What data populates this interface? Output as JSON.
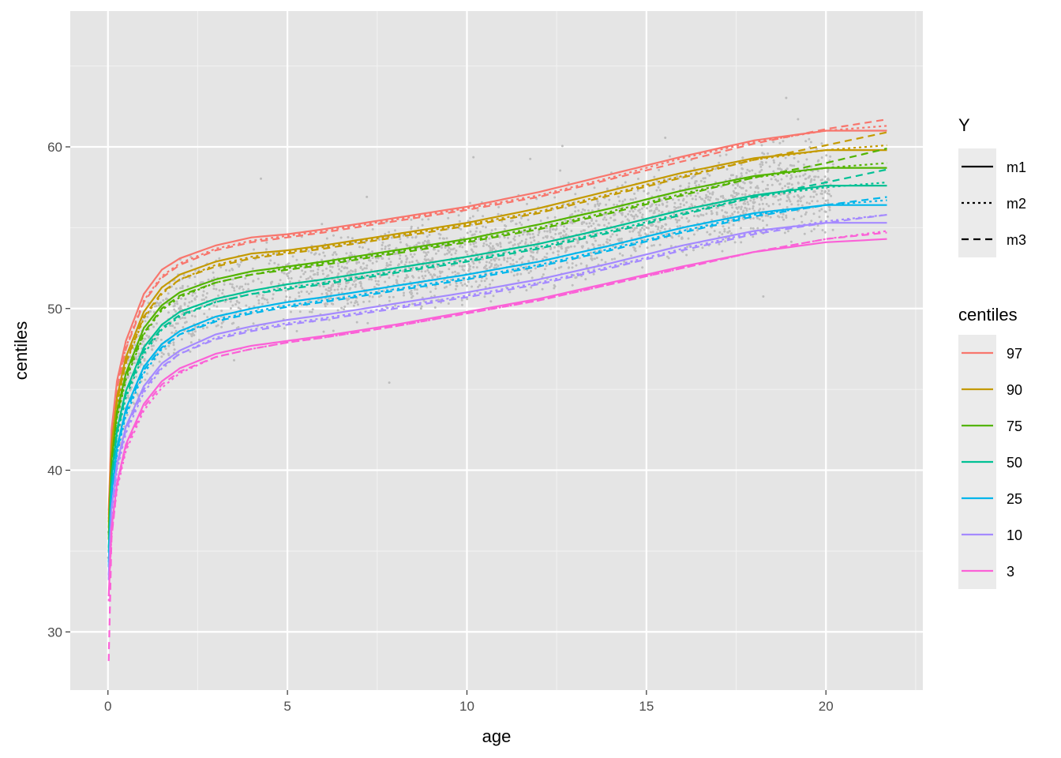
{
  "chart_data": {
    "type": "line",
    "title": "",
    "xlabel": "age",
    "ylabel": "centiles",
    "xlim": [
      -1.05,
      22.7
    ],
    "ylim": [
      26.4,
      68.4
    ],
    "x_ticks": [
      0,
      5,
      10,
      15,
      20
    ],
    "y_ticks": [
      30,
      40,
      50,
      60
    ],
    "grid": true,
    "background": "#e5e5e5",
    "legend_placement": "right",
    "legend_linetype": {
      "title": "Y",
      "entries": [
        {
          "label": "m1",
          "dash": "solid"
        },
        {
          "label": "m2",
          "dash": "dotted"
        },
        {
          "label": "m3",
          "dash": "dashed"
        }
      ]
    },
    "legend_color": {
      "title": "centiles",
      "entries": [
        {
          "label": "97",
          "color": "#F8766D"
        },
        {
          "label": "90",
          "color": "#C49A00"
        },
        {
          "label": "75",
          "color": "#53B400"
        },
        {
          "label": "50",
          "color": "#00C094"
        },
        {
          "label": "25",
          "color": "#00B6EB"
        },
        {
          "label": "10",
          "color": "#A58AFF"
        },
        {
          "label": "3",
          "color": "#FB61D7"
        }
      ]
    },
    "x": [
      0.02,
      0.1,
      0.25,
      0.5,
      1,
      1.5,
      2,
      3,
      4,
      5,
      6,
      8,
      10,
      12,
      14,
      16,
      18,
      20,
      21.7
    ],
    "series": [
      {
        "centile": "97",
        "model": "m1",
        "color": "#F8766D",
        "dash": "solid",
        "values": [
          37.5,
          42.5,
          45.5,
          48.0,
          50.9,
          52.4,
          53.1,
          53.9,
          54.4,
          54.6,
          54.9,
          55.6,
          56.3,
          57.2,
          58.3,
          59.4,
          60.4,
          61.0,
          61.0
        ]
      },
      {
        "centile": "97",
        "model": "m2",
        "color": "#F8766D",
        "dash": "dotted",
        "values": [
          37.0,
          42.0,
          45.2,
          47.6,
          50.5,
          52.0,
          52.8,
          53.7,
          54.2,
          54.5,
          54.8,
          55.5,
          56.2,
          57.0,
          58.1,
          59.3,
          60.3,
          61.0,
          61.3
        ]
      },
      {
        "centile": "97",
        "model": "m3",
        "color": "#F8766D",
        "dash": "dashed",
        "values": [
          37.2,
          42.2,
          45.0,
          47.5,
          50.4,
          51.9,
          52.7,
          53.6,
          54.1,
          54.4,
          54.7,
          55.4,
          56.1,
          56.9,
          58.0,
          59.1,
          60.2,
          61.1,
          61.7
        ]
      },
      {
        "centile": "90",
        "model": "m1",
        "color": "#C49A00",
        "dash": "solid",
        "values": [
          36.8,
          41.5,
          44.5,
          47.0,
          49.8,
          51.3,
          52.1,
          52.9,
          53.4,
          53.6,
          53.9,
          54.6,
          55.3,
          56.2,
          57.3,
          58.4,
          59.3,
          59.8,
          59.8
        ]
      },
      {
        "centile": "90",
        "model": "m2",
        "color": "#C49A00",
        "dash": "dotted",
        "values": [
          36.4,
          41.0,
          44.0,
          46.6,
          49.4,
          50.9,
          51.8,
          52.7,
          53.2,
          53.5,
          53.8,
          54.5,
          55.2,
          56.0,
          57.1,
          58.2,
          59.2,
          59.8,
          60.1
        ]
      },
      {
        "centile": "90",
        "model": "m3",
        "color": "#C49A00",
        "dash": "dashed",
        "values": [
          36.5,
          41.2,
          44.2,
          46.7,
          49.5,
          51.0,
          51.8,
          52.6,
          53.1,
          53.4,
          53.7,
          54.4,
          55.1,
          55.9,
          57.0,
          58.1,
          59.2,
          60.1,
          60.9
        ]
      },
      {
        "centile": "75",
        "model": "m1",
        "color": "#53B400",
        "dash": "solid",
        "values": [
          36.0,
          40.6,
          43.6,
          46.0,
          48.8,
          50.2,
          51.0,
          51.8,
          52.3,
          52.6,
          52.9,
          53.6,
          54.3,
          55.2,
          56.2,
          57.3,
          58.2,
          58.7,
          58.7
        ]
      },
      {
        "centile": "75",
        "model": "m2",
        "color": "#53B400",
        "dash": "dotted",
        "values": [
          35.7,
          40.2,
          43.2,
          45.6,
          48.4,
          49.9,
          50.7,
          51.6,
          52.1,
          52.5,
          52.8,
          53.5,
          54.2,
          55.0,
          56.0,
          57.1,
          58.1,
          58.7,
          59.0
        ]
      },
      {
        "centile": "75",
        "model": "m3",
        "color": "#53B400",
        "dash": "dashed",
        "values": [
          35.8,
          40.4,
          43.4,
          45.8,
          48.5,
          50.0,
          50.8,
          51.6,
          52.1,
          52.4,
          52.7,
          53.4,
          54.1,
          54.9,
          55.9,
          57.0,
          58.1,
          59.0,
          59.9
        ]
      },
      {
        "centile": "50",
        "model": "m1",
        "color": "#00C094",
        "dash": "solid",
        "values": [
          35.2,
          39.6,
          42.5,
          44.9,
          47.6,
          49.0,
          49.8,
          50.6,
          51.1,
          51.5,
          51.8,
          52.5,
          53.2,
          54.0,
          55.0,
          56.1,
          57.0,
          57.6,
          57.6
        ]
      },
      {
        "centile": "50",
        "model": "m2",
        "color": "#00C094",
        "dash": "dotted",
        "values": [
          34.9,
          39.2,
          42.1,
          44.5,
          47.2,
          48.7,
          49.5,
          50.4,
          50.9,
          51.3,
          51.6,
          52.3,
          53.0,
          53.8,
          54.8,
          55.9,
          56.9,
          57.5,
          57.8
        ]
      },
      {
        "centile": "50",
        "model": "m3",
        "color": "#00C094",
        "dash": "dashed",
        "values": [
          35.0,
          39.4,
          42.3,
          44.7,
          47.4,
          48.8,
          49.6,
          50.4,
          50.9,
          51.2,
          51.5,
          52.2,
          52.9,
          53.7,
          54.7,
          55.8,
          56.9,
          57.8,
          58.6
        ]
      },
      {
        "centile": "25",
        "model": "m1",
        "color": "#00B6EB",
        "dash": "solid",
        "values": [
          34.3,
          38.6,
          41.4,
          43.8,
          46.4,
          47.8,
          48.6,
          49.5,
          50.0,
          50.4,
          50.7,
          51.4,
          52.1,
          52.9,
          53.9,
          55.0,
          55.9,
          56.4,
          56.4
        ]
      },
      {
        "centile": "25",
        "model": "m2",
        "color": "#00B6EB",
        "dash": "dotted",
        "values": [
          34.0,
          38.2,
          41.0,
          43.4,
          46.0,
          47.5,
          48.4,
          49.3,
          49.8,
          50.2,
          50.5,
          51.2,
          51.9,
          52.7,
          53.7,
          54.8,
          55.8,
          56.4,
          56.7
        ]
      },
      {
        "centile": "25",
        "model": "m3",
        "color": "#00B6EB",
        "dash": "dashed",
        "values": [
          34.1,
          38.4,
          41.2,
          43.6,
          46.2,
          47.6,
          48.4,
          49.2,
          49.7,
          50.1,
          50.4,
          51.1,
          51.8,
          52.6,
          53.6,
          54.7,
          55.7,
          56.4,
          56.9
        ]
      },
      {
        "centile": "10",
        "model": "m1",
        "color": "#A58AFF",
        "dash": "solid",
        "values": [
          33.5,
          37.6,
          40.4,
          42.7,
          45.2,
          46.6,
          47.4,
          48.4,
          48.9,
          49.3,
          49.6,
          50.3,
          51.0,
          51.8,
          52.8,
          53.9,
          54.8,
          55.3,
          55.3
        ]
      },
      {
        "centile": "10",
        "model": "m2",
        "color": "#A58AFF",
        "dash": "dotted",
        "values": [
          33.2,
          37.2,
          40.0,
          42.3,
          44.8,
          46.3,
          47.2,
          48.2,
          48.7,
          49.1,
          49.4,
          50.1,
          50.8,
          51.6,
          52.6,
          53.7,
          54.7,
          55.4,
          55.8
        ]
      },
      {
        "centile": "10",
        "model": "m3",
        "color": "#A58AFF",
        "dash": "dashed",
        "values": [
          33.3,
          37.4,
          40.2,
          42.5,
          45.0,
          46.4,
          47.2,
          48.1,
          48.6,
          49.0,
          49.3,
          50.0,
          50.7,
          51.5,
          52.5,
          53.6,
          54.6,
          55.3,
          55.8
        ]
      },
      {
        "centile": "3",
        "model": "m1",
        "color": "#FB61D7",
        "dash": "solid",
        "values": [
          32.2,
          36.4,
          39.2,
          41.6,
          44.1,
          45.5,
          46.3,
          47.2,
          47.7,
          48.0,
          48.3,
          49.0,
          49.8,
          50.6,
          51.6,
          52.6,
          53.5,
          54.1,
          54.3
        ]
      },
      {
        "centile": "3",
        "model": "m2",
        "color": "#FB61D7",
        "dash": "dotted",
        "values": [
          31.9,
          36.0,
          38.8,
          41.2,
          43.7,
          45.1,
          46.0,
          47.0,
          47.5,
          47.9,
          48.2,
          48.9,
          49.7,
          50.5,
          51.5,
          52.5,
          53.5,
          54.3,
          54.8
        ]
      },
      {
        "centile": "3",
        "model": "m3",
        "color": "#FB61D7",
        "dash": "dashed",
        "values": [
          28.2,
          35.8,
          39.0,
          41.4,
          43.9,
          45.3,
          46.1,
          47.0,
          47.5,
          47.9,
          48.2,
          48.9,
          49.7,
          50.5,
          51.5,
          52.5,
          53.5,
          54.3,
          54.7
        ]
      }
    ],
    "scatter": {
      "color": "#bdbdbd",
      "description_points": "raw observations, age 0–21.7, values roughly between the 3rd and 97th centiles"
    }
  }
}
